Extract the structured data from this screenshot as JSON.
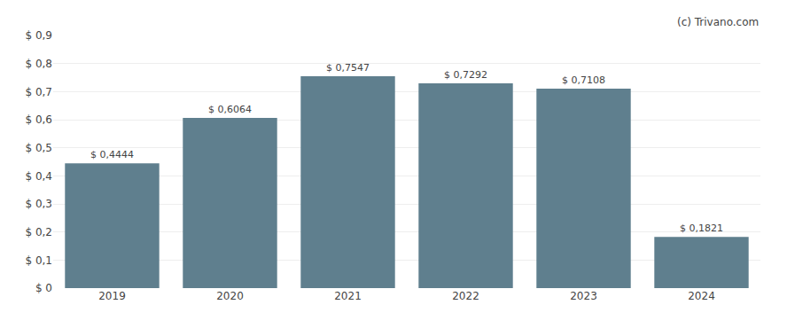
{
  "chart_data": {
    "type": "bar",
    "categories": [
      "2019",
      "2020",
      "2021",
      "2022",
      "2023",
      "2024"
    ],
    "values": [
      0.4444,
      0.6064,
      0.7547,
      0.7292,
      0.7108,
      0.1821
    ],
    "value_labels": [
      "$ 0,4444",
      "$ 0,6064",
      "$ 0,7547",
      "$ 0,7292",
      "$ 0,7108",
      "$ 0,1821"
    ],
    "data_labels": true,
    "color": "#5f7f8e",
    "ylim": [
      0,
      0.9
    ],
    "yticks": [
      {
        "value": 0,
        "label": "$ 0"
      },
      {
        "value": 0.1,
        "label": "$ 0,1"
      },
      {
        "value": 0.2,
        "label": "$ 0,2"
      },
      {
        "value": 0.3,
        "label": "$ 0,3"
      },
      {
        "value": 0.4,
        "label": "$ 0,4"
      },
      {
        "value": 0.5,
        "label": "$ 0,5"
      },
      {
        "value": 0.6,
        "label": "$ 0,6"
      },
      {
        "value": 0.7,
        "label": "$ 0,7"
      },
      {
        "value": 0.8,
        "label": "$ 0,8"
      },
      {
        "value": 0.9,
        "label": "$ 0,9"
      }
    ],
    "grid": true,
    "annotations": [
      "(c) Trivano.com"
    ]
  }
}
